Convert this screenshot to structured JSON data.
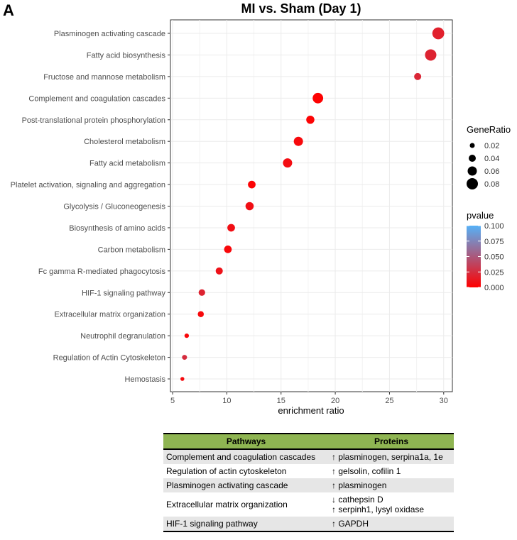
{
  "panel_label": "A",
  "chart_data": {
    "type": "scatter",
    "title": "MI vs. Sham (Day 1)",
    "xlabel": "enrichment ratio",
    "ylabel": "",
    "xlim": [
      4.8,
      30.8
    ],
    "xticks": [
      5,
      10,
      15,
      20,
      25,
      30
    ],
    "grid": true,
    "points": [
      {
        "term": "Plasminogen activating cascade",
        "x": 29.5,
        "gene_ratio": 0.085,
        "pvalue": 0.018
      },
      {
        "term": "Fatty acid biosynthesis",
        "x": 28.8,
        "gene_ratio": 0.08,
        "pvalue": 0.02
      },
      {
        "term": "Fructose and mannose metabolism",
        "x": 27.6,
        "gene_ratio": 0.04,
        "pvalue": 0.022
      },
      {
        "term": "Complement and coagulation cascades",
        "x": 18.4,
        "gene_ratio": 0.072,
        "pvalue": 0.001
      },
      {
        "term": "Post-translational protein phosphorylation",
        "x": 17.7,
        "gene_ratio": 0.05,
        "pvalue": 0.002
      },
      {
        "term": "Cholesterol metabolism",
        "x": 16.6,
        "gene_ratio": 0.06,
        "pvalue": 0.005
      },
      {
        "term": "Fatty acid metabolism",
        "x": 15.6,
        "gene_ratio": 0.06,
        "pvalue": 0.007
      },
      {
        "term": "Platelet activation, signaling and aggregation",
        "x": 12.3,
        "gene_ratio": 0.045,
        "pvalue": 0.002
      },
      {
        "term": "Glycolysis / Gluconeogenesis",
        "x": 12.1,
        "gene_ratio": 0.05,
        "pvalue": 0.008
      },
      {
        "term": "Biosynthesis of amino acids",
        "x": 10.4,
        "gene_ratio": 0.045,
        "pvalue": 0.008
      },
      {
        "term": "Carbon metabolism",
        "x": 10.1,
        "gene_ratio": 0.045,
        "pvalue": 0.004
      },
      {
        "term": "Fc gamma R-mediated phagocytosis",
        "x": 9.3,
        "gene_ratio": 0.04,
        "pvalue": 0.01
      },
      {
        "term": "HIF-1 signaling pathway",
        "x": 7.7,
        "gene_ratio": 0.035,
        "pvalue": 0.02
      },
      {
        "term": "Extracellular matrix organization",
        "x": 7.6,
        "gene_ratio": 0.03,
        "pvalue": 0.005
      },
      {
        "term": "Neutrophil degranulation",
        "x": 6.3,
        "gene_ratio": 0.015,
        "pvalue": 0.004
      },
      {
        "term": "Regulation of Actin Cytoskeleton",
        "x": 6.1,
        "gene_ratio": 0.02,
        "pvalue": 0.025
      },
      {
        "term": "Hemostasis",
        "x": 5.9,
        "gene_ratio": 0.01,
        "pvalue": 0.006
      }
    ],
    "size_legend": {
      "title": "GeneRatio",
      "values": [
        0.02,
        0.04,
        0.06,
        0.08
      ],
      "labels": [
        "0.02",
        "0.04",
        "0.06",
        "0.08"
      ]
    },
    "color_legend": {
      "title": "pvalue",
      "low_color": "#ff0000",
      "high_color": "#56b1f7",
      "ticks": [
        0.1,
        0.075,
        0.05,
        0.025,
        0.0
      ],
      "labels": [
        "0.100",
        "0.075",
        "0.050",
        "0.025",
        "0.000"
      ]
    }
  },
  "table": {
    "header_color": "#8fb552",
    "headers": [
      "Pathways",
      "Proteins"
    ],
    "rows": [
      {
        "pathway": "Complement and coagulation cascades",
        "proteins": [
          "↑ plasminogen, serpina1a, 1e"
        ]
      },
      {
        "pathway": "Regulation of actin cytoskeleton",
        "proteins": [
          "↑ gelsolin, cofilin 1"
        ]
      },
      {
        "pathway": "Plasminogen activating cascade",
        "proteins": [
          "↑ plasminogen"
        ]
      },
      {
        "pathway": "Extracellular matrix organization",
        "proteins": [
          "↓ cathepsin D",
          "↑ serpinh1, lysyl oxidase"
        ]
      },
      {
        "pathway": "HIF-1 signaling pathway",
        "proteins": [
          "↑ GAPDH"
        ]
      }
    ]
  }
}
